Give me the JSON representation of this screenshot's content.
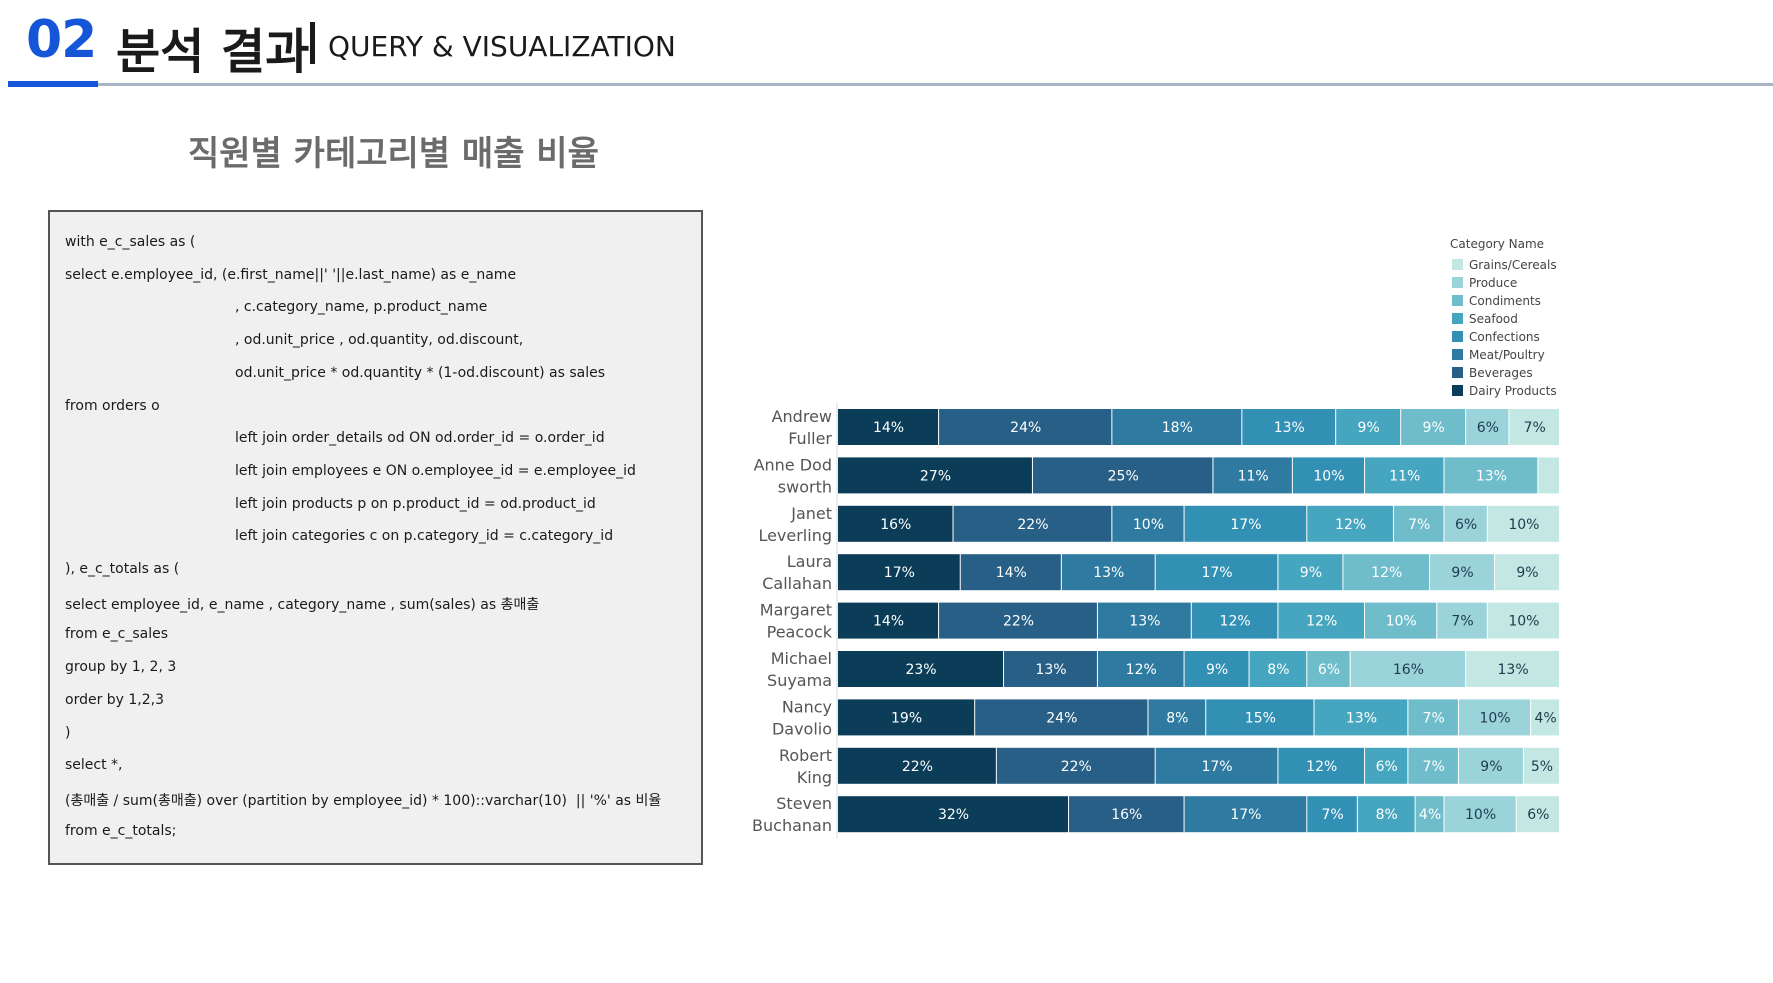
{
  "header": {
    "section_number": "02",
    "title": "분석 결과",
    "subtitle": "QUERY & VISUALIZATION"
  },
  "chart_heading": "직원별 카테고리별 매출 비율",
  "code": {
    "lines": [
      {
        "text": "with e_c_sales as (",
        "indent": 0
      },
      {
        "text": "select e.employee_id, (e.first_name||' '||e.last_name) as e_name",
        "indent": 0
      },
      {
        "text": ", c.category_name, p.product_name",
        "indent": 1
      },
      {
        "text": ", od.unit_price , od.quantity, od.discount,",
        "indent": 1
      },
      {
        "text": "od.unit_price * od.quantity * (1-od.discount) as sales",
        "indent": 1
      },
      {
        "text": "from orders o",
        "indent": 0
      },
      {
        "text": "left join order_details od ON od.order_id = o.order_id",
        "indent": 1
      },
      {
        "text": "left join employees e ON o.employee_id = e.employee_id",
        "indent": 1
      },
      {
        "text": "left join products p on p.product_id = od.product_id",
        "indent": 1
      },
      {
        "text": "left join categories c on p.category_id = c.category_id",
        "indent": 1
      },
      {
        "text": "), e_c_totals as (",
        "indent": 0
      },
      {
        "text": "select employee_id, e_name , category_name , sum(sales) as 총매출",
        "indent": 0
      },
      {
        "text": "from e_c_sales",
        "indent": 0
      },
      {
        "text": "group by 1, 2, 3",
        "indent": 0
      },
      {
        "text": "order by 1,2,3",
        "indent": 0
      },
      {
        "text": ")",
        "indent": 0
      },
      {
        "text": "select *,",
        "indent": 0
      },
      {
        "text": "(총매출 / sum(총매출) over (partition by employee_id) * 100)::varchar(10)  || '%' as 비율",
        "indent": 0
      },
      {
        "text": "from e_c_totals;",
        "indent": 0
      }
    ]
  },
  "chart_data": {
    "type": "bar",
    "orientation": "horizontal",
    "stacked": true,
    "normalized_percent": true,
    "legend_title": "Category Name",
    "legend_position": "top-right",
    "categories": [
      [
        "Andrew",
        "Fuller"
      ],
      [
        "Anne Dod",
        "sworth"
      ],
      [
        "Janet",
        "Leverling"
      ],
      [
        "Laura",
        "Callahan"
      ],
      [
        "Margaret",
        "Peacock"
      ],
      [
        "Michael",
        "Suyama"
      ],
      [
        "Nancy",
        "Davolio"
      ],
      [
        "Robert",
        "King"
      ],
      [
        "Steven",
        "Buchanan"
      ]
    ],
    "series": [
      {
        "name": "Dairy Products",
        "color": "#0b3d58",
        "values": [
          14,
          27,
          16,
          17,
          14,
          23,
          19,
          22,
          32
        ]
      },
      {
        "name": "Beverages",
        "color": "#275f86",
        "values": [
          24,
          25,
          22,
          14,
          22,
          13,
          24,
          22,
          16
        ]
      },
      {
        "name": "Meat/Poultry",
        "color": "#2e7aa1",
        "values": [
          18,
          11,
          10,
          13,
          13,
          12,
          8,
          17,
          17
        ]
      },
      {
        "name": "Confections",
        "color": "#3190b4",
        "values": [
          13,
          10,
          17,
          17,
          12,
          9,
          15,
          12,
          7
        ]
      },
      {
        "name": "Seafood",
        "color": "#47a6bf",
        "values": [
          9,
          11,
          12,
          9,
          12,
          8,
          13,
          6,
          8
        ]
      },
      {
        "name": "Condiments",
        "color": "#6fbccb",
        "values": [
          9,
          13,
          7,
          12,
          10,
          6,
          7,
          7,
          4
        ]
      },
      {
        "name": "Produce",
        "color": "#9ad4da",
        "values": [
          6,
          0,
          6,
          9,
          7,
          16,
          10,
          9,
          10
        ]
      },
      {
        "name": "Grains/Cereals",
        "color": "#c3e8e4",
        "values": [
          7,
          3,
          10,
          9,
          10,
          13,
          4,
          5,
          6
        ]
      }
    ],
    "labels": [
      [
        "14%",
        "24%",
        "18%",
        "13%",
        "9%",
        "9%",
        "6%",
        "7%"
      ],
      [
        "27%",
        "25%",
        "11%",
        "10%",
        "11%",
        "13%",
        "",
        ""
      ],
      [
        "16%",
        "22%",
        "10%",
        "17%",
        "12%",
        "7%",
        "6%",
        "10%"
      ],
      [
        "17%",
        "14%",
        "13%",
        "17%",
        "9%",
        "12%",
        "9%",
        "9%"
      ],
      [
        "14%",
        "22%",
        "13%",
        "12%",
        "12%",
        "10%",
        "7%",
        "10%"
      ],
      [
        "23%",
        "13%",
        "12%",
        "9%",
        "8%",
        "6%",
        "16%",
        "13%"
      ],
      [
        "19%",
        "24%",
        "8%",
        "15%",
        "13%",
        "7%",
        "10%",
        "4%"
      ],
      [
        "22%",
        "22%",
        "17%",
        "12%",
        "6%",
        "7%",
        "9%",
        "5%"
      ],
      [
        "32%",
        "16%",
        "17%",
        "7%",
        "8%",
        "4%",
        "10%",
        "6%"
      ]
    ],
    "legend_order": [
      "Grains/Cereals",
      "Produce",
      "Condiments",
      "Seafood",
      "Confections",
      "Meat/Poultry",
      "Beverages",
      "Dairy Products"
    ]
  }
}
